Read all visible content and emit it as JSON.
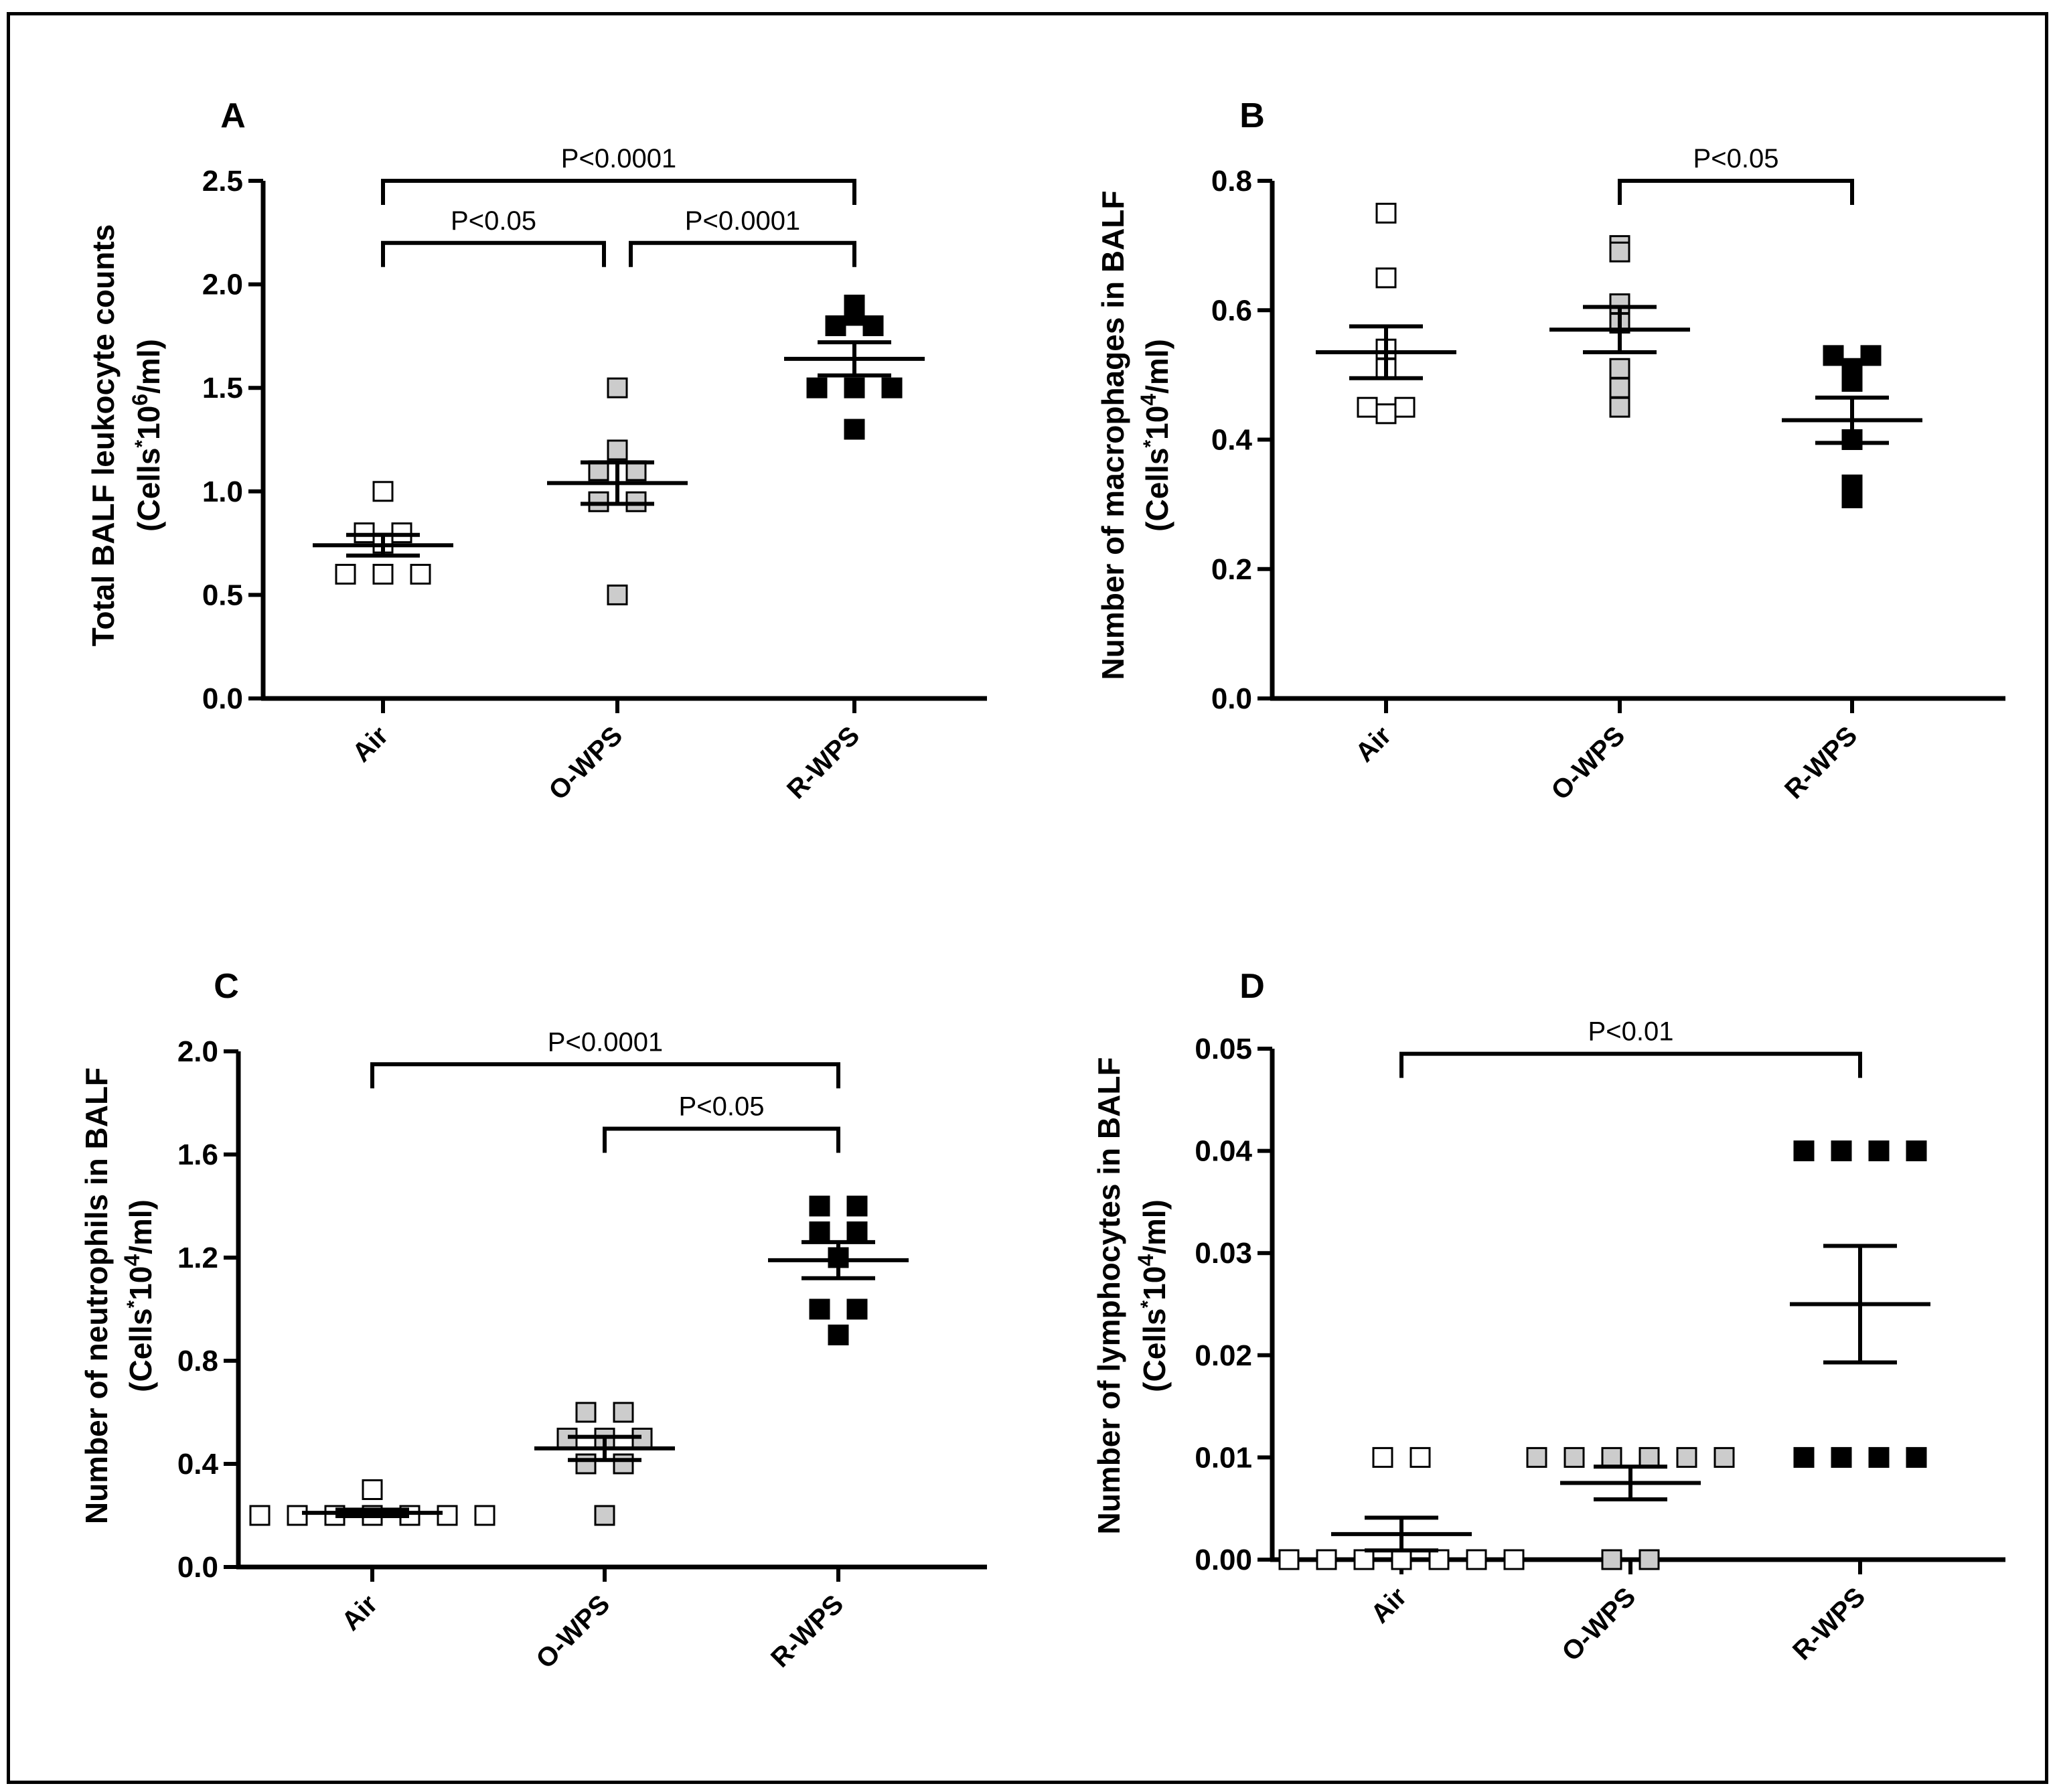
{
  "figure": {
    "colors": {
      "Air": "#ffffff",
      "O-WPS": "#cccccc",
      "R-WPS": "#000000"
    }
  },
  "chart_data": [
    {
      "type": "scatter",
      "panel": "A",
      "ylabel": "Total BALF leukocyte counts",
      "ylabel_unit": "(Cells*10⁶/ml)",
      "ylabel_unit_parts": [
        "(Cells",
        "*",
        "10",
        "6",
        "/ml)"
      ],
      "categories": [
        "Air",
        "O-WPS",
        "R-WPS"
      ],
      "ylim": [
        0,
        2.5
      ],
      "yticks": [
        0,
        0.5,
        1.0,
        1.5,
        2.0,
        2.5
      ],
      "ytick_labels": [
        "0.0",
        "0.5",
        "1.0",
        "1.5",
        "2.0",
        "2.5"
      ],
      "series": [
        {
          "name": "Air",
          "values": [
            1.0,
            0.8,
            0.8,
            0.75,
            0.6,
            0.6,
            0.6
          ],
          "mean": 0.74,
          "sem": 0.05
        },
        {
          "name": "O-WPS",
          "values": [
            1.5,
            1.2,
            1.1,
            1.1,
            0.95,
            0.95,
            0.5
          ],
          "mean": 1.04,
          "sem": 0.1
        },
        {
          "name": "R-WPS",
          "values": [
            1.9,
            1.85,
            1.8,
            1.8,
            1.5,
            1.5,
            1.5,
            1.3
          ],
          "mean": 1.64,
          "sem": 0.08
        }
      ],
      "comparisons": [
        {
          "from": 0,
          "to": 2,
          "label": "P<0.0001",
          "level": 2.5
        },
        {
          "from": 0,
          "to": 1,
          "label": "P<0.05",
          "level": 2.2
        },
        {
          "from": 1,
          "to": 2,
          "label": "P<0.0001",
          "level": 2.2
        }
      ]
    },
    {
      "type": "scatter",
      "panel": "B",
      "ylabel": "Number of macrophages in BALF",
      "ylabel_unit": "(Cells*10⁴/ml)",
      "ylabel_unit_parts": [
        "(Cells",
        "*",
        "10",
        "4",
        "/ml)"
      ],
      "categories": [
        "Air",
        "O-WPS",
        "R-WPS"
      ],
      "ylim": [
        0,
        0.8
      ],
      "yticks": [
        0,
        0.2,
        0.4,
        0.6,
        0.8
      ],
      "ytick_labels": [
        "0.0",
        "0.2",
        "0.4",
        "0.6",
        "0.8"
      ],
      "series": [
        {
          "name": "Air",
          "values": [
            0.75,
            0.65,
            0.54,
            0.51,
            0.45,
            0.45,
            0.44
          ],
          "mean": 0.535,
          "sem": 0.04
        },
        {
          "name": "O-WPS",
          "values": [
            0.7,
            0.69,
            0.61,
            0.58,
            0.51,
            0.48,
            0.45
          ],
          "mean": 0.57,
          "sem": 0.035
        },
        {
          "name": "R-WPS",
          "values": [
            0.53,
            0.53,
            0.51,
            0.49,
            0.4,
            0.33,
            0.31
          ],
          "mean": 0.43,
          "sem": 0.035
        }
      ],
      "comparisons": [
        {
          "from": 1,
          "to": 2,
          "label": "P<0.05",
          "level": 0.8
        }
      ]
    },
    {
      "type": "scatter",
      "panel": "C",
      "ylabel": "Number of neutrophils in BALF",
      "ylabel_unit": "(Cells*10⁴/ml)",
      "ylabel_unit_parts": [
        "(Cells",
        "*",
        "10",
        "4",
        "/ml)"
      ],
      "categories": [
        "Air",
        "O-WPS",
        "R-WPS"
      ],
      "ylim": [
        0,
        2.0
      ],
      "yticks": [
        0,
        0.4,
        0.8,
        1.2,
        1.6,
        2.0
      ],
      "ytick_labels": [
        "0.0",
        "0.4",
        "0.8",
        "1.2",
        "1.6",
        "2.0"
      ],
      "series": [
        {
          "name": "Air",
          "values": [
            0.3,
            0.2,
            0.2,
            0.2,
            0.2,
            0.2,
            0.2,
            0.2
          ],
          "mean": 0.21,
          "sem": 0.0125
        },
        {
          "name": "O-WPS",
          "values": [
            0.6,
            0.6,
            0.5,
            0.5,
            0.5,
            0.4,
            0.4,
            0.2
          ],
          "mean": 0.46,
          "sem": 0.045
        },
        {
          "name": "R-WPS",
          "values": [
            1.4,
            1.4,
            1.3,
            1.3,
            1.2,
            1.0,
            1.0,
            0.9
          ],
          "mean": 1.19,
          "sem": 0.07
        }
      ],
      "comparisons": [
        {
          "from": 0,
          "to": 2,
          "label": "P<0.0001",
          "level": 1.95
        },
        {
          "from": 1,
          "to": 2,
          "label": "P<0.05",
          "level": 1.7
        }
      ]
    },
    {
      "type": "scatter",
      "panel": "D",
      "ylabel": "Number of lymphocytes in BALF",
      "ylabel_unit": "(Cells*10⁴/ml)",
      "ylabel_unit_parts": [
        "(Cells",
        "*",
        "10",
        "4",
        "/ml)"
      ],
      "categories": [
        "Air",
        "O-WPS",
        "R-WPS"
      ],
      "ylim": [
        0,
        0.05
      ],
      "yticks": [
        0,
        0.01,
        0.02,
        0.03,
        0.04,
        0.05
      ],
      "ytick_labels": [
        "0.00",
        "0.01",
        "0.02",
        "0.03",
        "0.04",
        "0.05"
      ],
      "series": [
        {
          "name": "Air",
          "values": [
            0.01,
            0.01,
            0,
            0,
            0,
            0,
            0,
            0,
            0
          ],
          "mean": 0.0025,
          "sem": 0.0016
        },
        {
          "name": "O-WPS",
          "values": [
            0.01,
            0.01,
            0.01,
            0.01,
            0.01,
            0.01,
            0,
            0
          ],
          "mean": 0.0075,
          "sem": 0.0016
        },
        {
          "name": "R-WPS",
          "values": [
            0.04,
            0.04,
            0.04,
            0.04,
            0.01,
            0.01,
            0.01,
            0.01
          ],
          "mean": 0.025,
          "sem": 0.0057
        }
      ],
      "comparisons": [
        {
          "from": 0,
          "to": 2,
          "label": "P<0.01",
          "level": 0.0495
        }
      ]
    }
  ]
}
